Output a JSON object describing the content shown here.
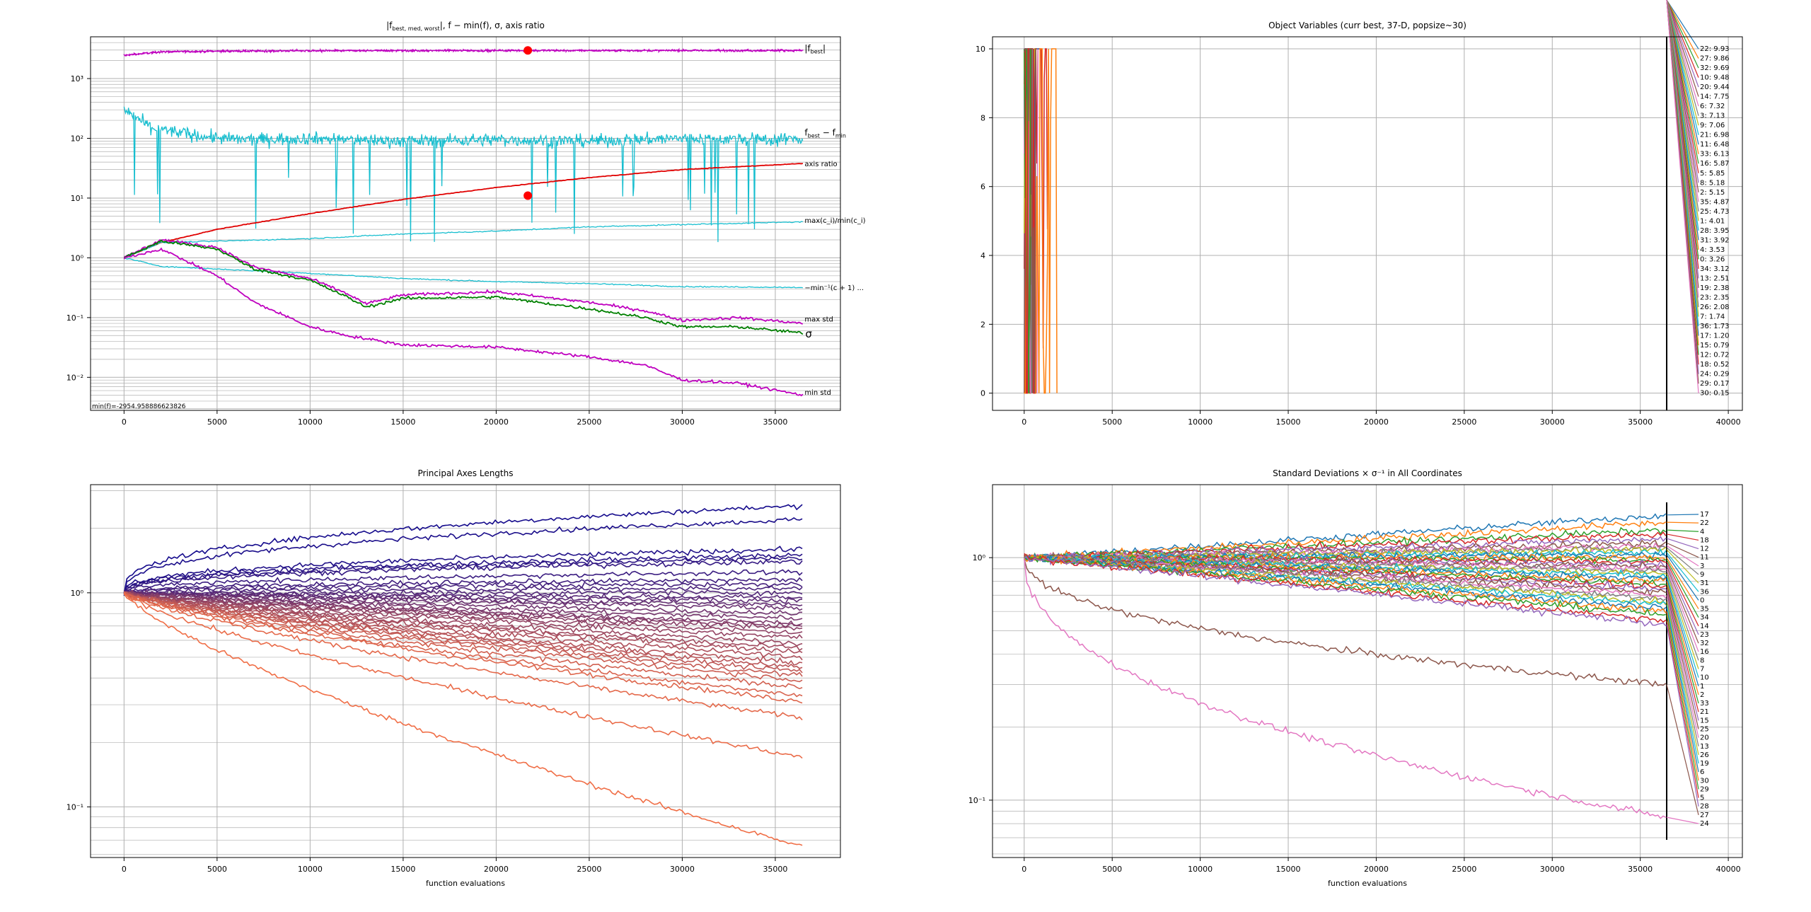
{
  "figure": {
    "min_f_note": "min(f)=-2954.958886623826"
  },
  "colors": {
    "magenta": "#bf00bf",
    "cyan": "#17becf",
    "red": "#e00000",
    "green": "#008000",
    "grid": "#b0b0b0",
    "axes": "#000000"
  },
  "chart_data": [
    {
      "type": "line",
      "title": "|f_best,med,worst|, f − min(f), σ, axis ratio",
      "title_plain": "|f",
      "title_sub": "best, med, worst",
      "title_rest": "|, f − min(f), σ, axis ratio",
      "xlabel": "",
      "ylabel": "",
      "xlim": [
        -1800,
        38500
      ],
      "yscale": "log",
      "ylim": [
        0.0028,
        5000
      ],
      "xticks": [
        0,
        5000,
        10000,
        15000,
        20000,
        25000,
        30000,
        35000
      ],
      "yticks": [
        0.01,
        0.1,
        1,
        10,
        100,
        1000
      ],
      "ytick_labels": [
        "10⁻²",
        "10⁻¹",
        "10⁰",
        "10¹",
        "10²",
        "10³"
      ],
      "grid": true,
      "series": [
        {
          "name": "|f_best|",
          "color": "#bf00bf",
          "x": [
            0,
            2000,
            5000,
            10000,
            15000,
            20000,
            25000,
            30000,
            36500
          ],
          "y": [
            2450,
            2800,
            2880,
            2920,
            2935,
            2945,
            2950,
            2953,
            2955
          ]
        },
        {
          "name": "f_best − f_min",
          "color": "#17becf",
          "x": [
            0,
            1500,
            4000,
            6000,
            10000,
            15000,
            20000,
            25000,
            30000,
            35000,
            36500
          ],
          "y": [
            300,
            150,
            110,
            95,
            100,
            90,
            95,
            90,
            100,
            95,
            100
          ]
        },
        {
          "name": "axis ratio",
          "color": "#e00000",
          "x": [
            0,
            2000,
            5000,
            10000,
            15000,
            20000,
            25000,
            30000,
            36500
          ],
          "y": [
            1.0,
            1.8,
            3.0,
            5.5,
            9.5,
            15,
            22,
            30,
            38
          ]
        },
        {
          "name": "max(c_i)/min(c_i)",
          "color": "#17becf",
          "x": [
            0,
            2000,
            5000,
            10000,
            15000,
            20000,
            25000,
            30000,
            36500
          ],
          "y": [
            1.0,
            1.8,
            1.9,
            2.1,
            2.5,
            2.8,
            3.3,
            3.6,
            4.0
          ]
        },
        {
          "name": "−min⁻¹(c+1)",
          "color": "#17becf",
          "x": [
            0,
            2000,
            5000,
            10000,
            15000,
            20000,
            25000,
            30000,
            36500
          ],
          "y": [
            1.0,
            0.72,
            0.65,
            0.55,
            0.45,
            0.4,
            0.37,
            0.33,
            0.32
          ]
        },
        {
          "name": "max std",
          "color": "#bf00bf",
          "x": [
            0,
            2000,
            5000,
            7000,
            10000,
            12000,
            13000,
            15000,
            20000,
            25000,
            28000,
            30000,
            33000,
            36500
          ],
          "y": [
            1.0,
            2.0,
            1.5,
            0.7,
            0.45,
            0.25,
            0.17,
            0.24,
            0.27,
            0.18,
            0.13,
            0.09,
            0.1,
            0.08
          ]
        },
        {
          "name": "σ",
          "color": "#008000",
          "x": [
            0,
            2000,
            5000,
            7000,
            10000,
            12000,
            13000,
            15000,
            20000,
            25000,
            28000,
            30000,
            33000,
            36500
          ],
          "y": [
            1.0,
            1.9,
            1.4,
            0.65,
            0.42,
            0.22,
            0.15,
            0.21,
            0.22,
            0.14,
            0.1,
            0.07,
            0.07,
            0.055
          ]
        },
        {
          "name": "min std",
          "color": "#bf00bf",
          "x": [
            0,
            2000,
            5000,
            7000,
            10000,
            12000,
            15000,
            20000,
            25000,
            28000,
            30000,
            33000,
            36500
          ],
          "y": [
            1.0,
            1.4,
            0.5,
            0.18,
            0.07,
            0.05,
            0.035,
            0.032,
            0.022,
            0.016,
            0.009,
            0.008,
            0.005
          ]
        }
      ],
      "labels": [
        "|f_best|",
        "f_best − f_min",
        "axis ratio",
        "max(c_i)/min(c_i)",
        "−min⁻¹(c+1) ...",
        "max std",
        "σ",
        "min std"
      ],
      "label_best": "|f",
      "label_best_sub": "best",
      "label_best_end": "|",
      "label_fdiff": "f",
      "label_fdiff_sub1": "best",
      "label_fdiff_mid": " − f",
      "label_fdiff_sub2": "min",
      "label_axis": "axis ratio",
      "label_maxc": "max(c_i)/min(c_i)",
      "label_minc": "−min⁻¹(c + 1) ...",
      "label_maxstd": "max std",
      "label_sigma": "σ",
      "label_minstd": "min std",
      "markers": [
        {
          "x": 21700,
          "y": 2955,
          "color": "#ff0000"
        },
        {
          "x": 21700,
          "y": 11,
          "color": "#ff0000"
        }
      ]
    },
    {
      "type": "line",
      "title": "Object Variables (curr best, 37-D, popsize~30)",
      "xlabel": "",
      "ylabel": "",
      "xlim": [
        -1800,
        40800
      ],
      "ylim": [
        -0.5,
        10.35
      ],
      "xticks": [
        0,
        5000,
        10000,
        15000,
        20000,
        25000,
        30000,
        35000,
        40000
      ],
      "yticks": [
        0,
        2,
        4,
        6,
        8,
        10
      ],
      "grid": true,
      "vline_x": 36500,
      "final_values": [
        {
          "label": "22: 9.93",
          "value": 9.93
        },
        {
          "label": "27: 9.86",
          "value": 9.86
        },
        {
          "label": "32: 9.69",
          "value": 9.69
        },
        {
          "label": "10: 9.48",
          "value": 9.48
        },
        {
          "label": "20: 9.44",
          "value": 9.44
        },
        {
          "label": "14: 7.75",
          "value": 7.75
        },
        {
          "label": "6: 7.32",
          "value": 7.32
        },
        {
          "label": "3: 7.13",
          "value": 7.13
        },
        {
          "label": "9: 7.06",
          "value": 7.06
        },
        {
          "label": "21: 6.98",
          "value": 6.98
        },
        {
          "label": "11: 6.48",
          "value": 6.48
        },
        {
          "label": "33: 6.13",
          "value": 6.13
        },
        {
          "label": "16: 5.87",
          "value": 5.87
        },
        {
          "label": "5: 5.85",
          "value": 5.85
        },
        {
          "label": "8: 5.18",
          "value": 5.18
        },
        {
          "label": "2: 5.15",
          "value": 5.15
        },
        {
          "label": "35: 4.87",
          "value": 4.87
        },
        {
          "label": "25: 4.73",
          "value": 4.73
        },
        {
          "label": "1: 4.01",
          "value": 4.01
        },
        {
          "label": "28: 3.95",
          "value": 3.95
        },
        {
          "label": "31: 3.92",
          "value": 3.92
        },
        {
          "label": "4: 3.53",
          "value": 3.53
        },
        {
          "label": "0: 3.26",
          "value": 3.26
        },
        {
          "label": "34: 3.12",
          "value": 3.12
        },
        {
          "label": "13: 2.51",
          "value": 2.51
        },
        {
          "label": "19: 2.38",
          "value": 2.38
        },
        {
          "label": "23: 2.35",
          "value": 2.35
        },
        {
          "label": "26: 2.08",
          "value": 2.08
        },
        {
          "label": "7: 1.74",
          "value": 1.74
        },
        {
          "label": "36: 1.73",
          "value": 1.73
        },
        {
          "label": "17: 1.20",
          "value": 1.2
        },
        {
          "label": "15: 0.79",
          "value": 0.79
        },
        {
          "label": "12: 0.72",
          "value": 0.72
        },
        {
          "label": "18: 0.52",
          "value": 0.52
        },
        {
          "label": "24: 0.29",
          "value": 0.29
        },
        {
          "label": "29: 0.17",
          "value": 0.17
        },
        {
          "label": "30: 0.15",
          "value": 0.15
        }
      ]
    },
    {
      "type": "line",
      "title": "Principal Axes Lengths",
      "xlabel": "function evaluations",
      "ylabel": "",
      "xlim": [
        -1800,
        38500
      ],
      "yscale": "log",
      "ylim": [
        0.058,
        3.2
      ],
      "xticks": [
        0,
        5000,
        10000,
        15000,
        20000,
        25000,
        30000,
        35000
      ],
      "yticks": [
        0.1,
        1
      ],
      "ytick_labels": [
        "10⁻¹",
        "10⁰"
      ],
      "grid": true,
      "x_end": 36500,
      "final_values": [
        2.55,
        2.2,
        1.6,
        1.5,
        1.45,
        1.4,
        1.25,
        1.15,
        1.1,
        1.05,
        1.0,
        0.95,
        0.92,
        0.88,
        0.85,
        0.8,
        0.76,
        0.72,
        0.7,
        0.68,
        0.65,
        0.62,
        0.58,
        0.55,
        0.53,
        0.5,
        0.47,
        0.45,
        0.43,
        0.41,
        0.39,
        0.36,
        0.33,
        0.31,
        0.26,
        0.17,
        0.065
      ]
    },
    {
      "type": "line",
      "title": "Standard Deviations × σ⁻¹ in All Coordinates",
      "xlabel": "function evaluations",
      "ylabel": "",
      "xlim": [
        -1800,
        40800
      ],
      "yscale": "log",
      "ylim": [
        0.058,
        2.0
      ],
      "xticks": [
        0,
        5000,
        10000,
        15000,
        20000,
        25000,
        30000,
        35000,
        40000
      ],
      "yticks": [
        0.1,
        1
      ],
      "ytick_labels": [
        "10⁻¹",
        "10⁰"
      ],
      "grid": true,
      "vline_x": 36500,
      "label_order": [
        "17",
        "22",
        "4",
        "18",
        "12",
        "11",
        "3",
        "9",
        "31",
        "36",
        "0",
        "35",
        "34",
        "14",
        "23",
        "32",
        "16",
        "8",
        "7",
        "10",
        "1",
        "2",
        "33",
        "21",
        "15",
        "25",
        "20",
        "13",
        "26",
        "19",
        "6",
        "30",
        "29",
        "5",
        "28",
        "27",
        "24"
      ],
      "final_values": [
        1.5,
        1.4,
        1.3,
        1.25,
        1.2,
        1.15,
        1.12,
        1.1,
        1.08,
        1.05,
        1.03,
        1.0,
        0.98,
        0.96,
        0.94,
        0.92,
        0.9,
        0.88,
        0.86,
        0.84,
        0.82,
        0.8,
        0.78,
        0.76,
        0.74,
        0.72,
        0.7,
        0.68,
        0.66,
        0.64,
        0.62,
        0.6,
        0.58,
        0.55,
        0.53,
        0.3,
        0.085
      ]
    }
  ]
}
